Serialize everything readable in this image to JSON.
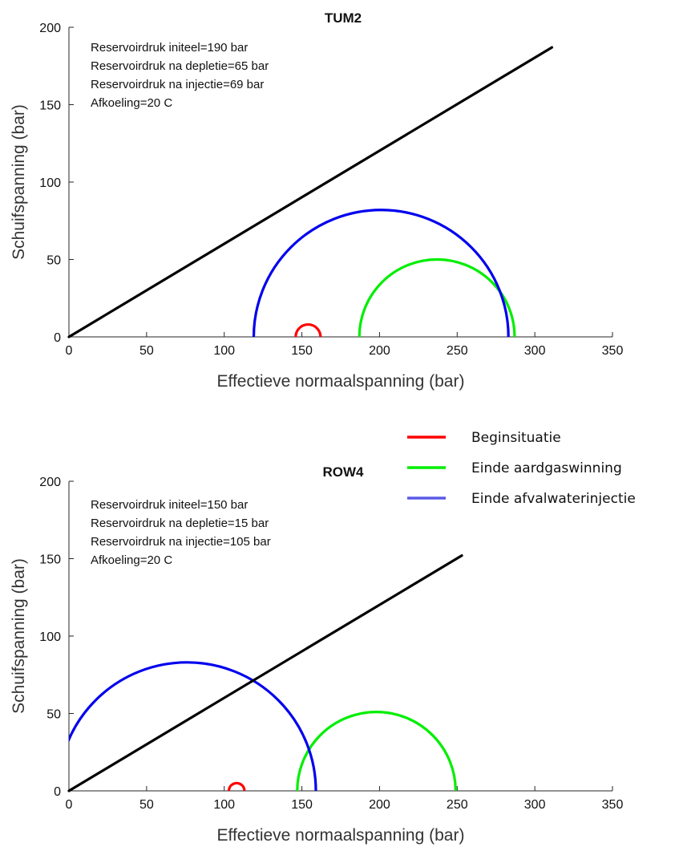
{
  "chart_data": [
    {
      "type": "line",
      "title": "TUM2",
      "xlabel": "Effectieve normaalspanning (bar)",
      "ylabel": "Schuifspanning (bar)",
      "xlim": [
        0,
        350
      ],
      "ylim": [
        0,
        200
      ],
      "xticks": [
        "0",
        "50",
        "100",
        "150",
        "200",
        "250",
        "300",
        "350"
      ],
      "yticks": [
        "0",
        "50",
        "100",
        "150",
        "200"
      ],
      "annotations": [
        "Reservoirdruk initeel=190 bar",
        "Reservoirdruk na depletie=65 bar",
        "Reservoirdruk na injectie=69 bar",
        "Afkoeling=20 C"
      ],
      "failure_line": {
        "x": [
          0,
          311
        ],
        "y": [
          0,
          187
        ],
        "color": "#000000"
      },
      "circles": [
        {
          "name": "Beginsituatie",
          "center": 154,
          "radius": 8,
          "color": "#ff0000"
        },
        {
          "name": "Einde aardgaswinning",
          "center": 237,
          "radius": 50,
          "color": "#00ee00"
        },
        {
          "name": "Einde afvalwaterinjectie",
          "center": 201,
          "radius": 82,
          "color": "#0000ee"
        }
      ]
    },
    {
      "type": "line",
      "title": "ROW4",
      "xlabel": "Effectieve normaalspanning (bar)",
      "ylabel": "Schuifspanning (bar)",
      "xlim": [
        0,
        350
      ],
      "ylim": [
        0,
        200
      ],
      "xticks": [
        "0",
        "50",
        "100",
        "150",
        "200",
        "250",
        "300",
        "350"
      ],
      "yticks": [
        "0",
        "50",
        "100",
        "150",
        "200"
      ],
      "annotations": [
        "Reservoirdruk initeel=150 bar",
        "Reservoirdruk na depletie=15 bar",
        "Reservoirdruk na injectie=105 bar",
        "Afkoeling=20 C"
      ],
      "failure_line": {
        "x": [
          0,
          253
        ],
        "y": [
          0,
          152
        ],
        "color": "#000000"
      },
      "circles": [
        {
          "name": "Beginsituatie",
          "center": 108,
          "radius": 5,
          "color": "#ff0000"
        },
        {
          "name": "Einde aardgaswinning",
          "center": 198,
          "radius": 51,
          "color": "#00ee00"
        },
        {
          "name": "Einde afvalwaterinjectie",
          "center": 76,
          "radius": 83,
          "color": "#0000ee"
        }
      ]
    }
  ],
  "legend": {
    "placement": "right",
    "items": [
      {
        "label": "Beginsituatie",
        "color": "#ff0000"
      },
      {
        "label": "Einde aardgaswinning",
        "color": "#00ee00"
      },
      {
        "label": "Einde afvalwaterinjectie",
        "color": "#5a5ae8"
      }
    ]
  }
}
